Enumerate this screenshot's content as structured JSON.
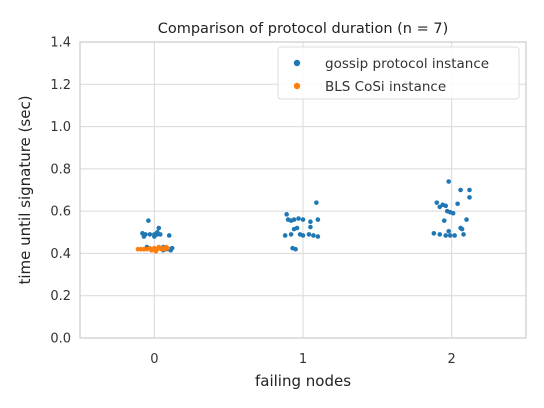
{
  "chart_data": {
    "type": "scatter",
    "title": "Comparison of protocol duration",
    "title_math": "(n = 7)",
    "xlabel": "failing nodes",
    "ylabel": "time until signature (sec)",
    "categories": [
      "0",
      "1",
      "2"
    ],
    "ylim": [
      0,
      1.4
    ],
    "yticks": [
      "0.0",
      "0.2",
      "0.4",
      "0.6",
      "0.8",
      "1.0",
      "1.2",
      "1.4"
    ],
    "grid": true,
    "legend_position": "top-right",
    "series": [
      {
        "name": "gossip protocol instance",
        "color": "#1f77b4",
        "points": [
          {
            "x": "0",
            "y": 0.555,
            "jitter": -0.04
          },
          {
            "x": "0",
            "y": 0.52,
            "jitter": 0.03
          },
          {
            "x": "0",
            "y": 0.5,
            "jitter": 0.02
          },
          {
            "x": "0",
            "y": 0.495,
            "jitter": -0.08
          },
          {
            "x": "0",
            "y": 0.49,
            "jitter": -0.06
          },
          {
            "x": "0",
            "y": 0.49,
            "jitter": -0.03
          },
          {
            "x": "0",
            "y": 0.49,
            "jitter": 0.0
          },
          {
            "x": "0",
            "y": 0.49,
            "jitter": 0.02
          },
          {
            "x": "0",
            "y": 0.49,
            "jitter": 0.04
          },
          {
            "x": "0",
            "y": 0.485,
            "jitter": 0.1
          },
          {
            "x": "0",
            "y": 0.48,
            "jitter": -0.07
          },
          {
            "x": "0",
            "y": 0.48,
            "jitter": 0.0
          },
          {
            "x": "0",
            "y": 0.43,
            "jitter": -0.05
          },
          {
            "x": "0",
            "y": 0.43,
            "jitter": 0.06
          },
          {
            "x": "0",
            "y": 0.425,
            "jitter": 0.12
          },
          {
            "x": "0",
            "y": 0.42,
            "jitter": 0.08
          },
          {
            "x": "0",
            "y": 0.42,
            "jitter": 0.1
          },
          {
            "x": "0",
            "y": 0.415,
            "jitter": 0.06
          },
          {
            "x": "0",
            "y": 0.415,
            "jitter": 0.11
          },
          {
            "x": "1",
            "y": 0.64,
            "jitter": 0.09
          },
          {
            "x": "1",
            "y": 0.585,
            "jitter": -0.11
          },
          {
            "x": "1",
            "y": 0.565,
            "jitter": -0.03
          },
          {
            "x": "1",
            "y": 0.56,
            "jitter": -0.1
          },
          {
            "x": "1",
            "y": 0.56,
            "jitter": -0.06
          },
          {
            "x": "1",
            "y": 0.56,
            "jitter": 0.0
          },
          {
            "x": "1",
            "y": 0.56,
            "jitter": 0.1
          },
          {
            "x": "1",
            "y": 0.555,
            "jitter": -0.08
          },
          {
            "x": "1",
            "y": 0.55,
            "jitter": 0.05
          },
          {
            "x": "1",
            "y": 0.525,
            "jitter": 0.05
          },
          {
            "x": "1",
            "y": 0.52,
            "jitter": -0.04
          },
          {
            "x": "1",
            "y": 0.515,
            "jitter": -0.06
          },
          {
            "x": "1",
            "y": 0.49,
            "jitter": -0.08
          },
          {
            "x": "1",
            "y": 0.49,
            "jitter": -0.02
          },
          {
            "x": "1",
            "y": 0.49,
            "jitter": 0.04
          },
          {
            "x": "1",
            "y": 0.485,
            "jitter": -0.12
          },
          {
            "x": "1",
            "y": 0.485,
            "jitter": 0.0
          },
          {
            "x": "1",
            "y": 0.485,
            "jitter": 0.07
          },
          {
            "x": "1",
            "y": 0.48,
            "jitter": 0.1
          },
          {
            "x": "1",
            "y": 0.425,
            "jitter": -0.07
          },
          {
            "x": "1",
            "y": 0.42,
            "jitter": -0.05
          },
          {
            "x": "2",
            "y": 0.74,
            "jitter": -0.02
          },
          {
            "x": "2",
            "y": 0.7,
            "jitter": 0.06
          },
          {
            "x": "2",
            "y": 0.7,
            "jitter": 0.12
          },
          {
            "x": "2",
            "y": 0.665,
            "jitter": 0.12
          },
          {
            "x": "2",
            "y": 0.64,
            "jitter": -0.1
          },
          {
            "x": "2",
            "y": 0.635,
            "jitter": 0.04
          },
          {
            "x": "2",
            "y": 0.63,
            "jitter": -0.06
          },
          {
            "x": "2",
            "y": 0.625,
            "jitter": -0.04
          },
          {
            "x": "2",
            "y": 0.62,
            "jitter": -0.08
          },
          {
            "x": "2",
            "y": 0.6,
            "jitter": -0.03
          },
          {
            "x": "2",
            "y": 0.595,
            "jitter": -0.01
          },
          {
            "x": "2",
            "y": 0.59,
            "jitter": 0.01
          },
          {
            "x": "2",
            "y": 0.56,
            "jitter": 0.1
          },
          {
            "x": "2",
            "y": 0.555,
            "jitter": -0.05
          },
          {
            "x": "2",
            "y": 0.52,
            "jitter": 0.06
          },
          {
            "x": "2",
            "y": 0.515,
            "jitter": 0.07
          },
          {
            "x": "2",
            "y": 0.505,
            "jitter": -0.02
          },
          {
            "x": "2",
            "y": 0.495,
            "jitter": -0.12
          },
          {
            "x": "2",
            "y": 0.49,
            "jitter": -0.08
          },
          {
            "x": "2",
            "y": 0.49,
            "jitter": 0.08
          },
          {
            "x": "2",
            "y": 0.485,
            "jitter": -0.04
          },
          {
            "x": "2",
            "y": 0.485,
            "jitter": -0.01
          },
          {
            "x": "2",
            "y": 0.485,
            "jitter": 0.02
          }
        ]
      },
      {
        "name": "BLS CoSi instance",
        "color": "#ff7f0e",
        "points": [
          {
            "x": "0",
            "y": 0.42,
            "jitter": -0.11
          },
          {
            "x": "0",
            "y": 0.42,
            "jitter": -0.09
          },
          {
            "x": "0",
            "y": 0.42,
            "jitter": -0.07
          },
          {
            "x": "0",
            "y": 0.42,
            "jitter": -0.05
          },
          {
            "x": "0",
            "y": 0.425,
            "jitter": -0.03
          },
          {
            "x": "0",
            "y": 0.415,
            "jitter": -0.02
          },
          {
            "x": "0",
            "y": 0.42,
            "jitter": -0.01
          },
          {
            "x": "0",
            "y": 0.425,
            "jitter": 0.0
          },
          {
            "x": "0",
            "y": 0.41,
            "jitter": 0.01
          },
          {
            "x": "0",
            "y": 0.42,
            "jitter": 0.02
          },
          {
            "x": "0",
            "y": 0.43,
            "jitter": 0.03
          },
          {
            "x": "0",
            "y": 0.425,
            "jitter": 0.04
          },
          {
            "x": "0",
            "y": 0.42,
            "jitter": 0.05
          },
          {
            "x": "0",
            "y": 0.425,
            "jitter": 0.06
          },
          {
            "x": "0",
            "y": 0.42,
            "jitter": 0.07
          },
          {
            "x": "0",
            "y": 0.43,
            "jitter": 0.08
          },
          {
            "x": "0",
            "y": 0.425,
            "jitter": 0.09
          }
        ]
      }
    ]
  }
}
